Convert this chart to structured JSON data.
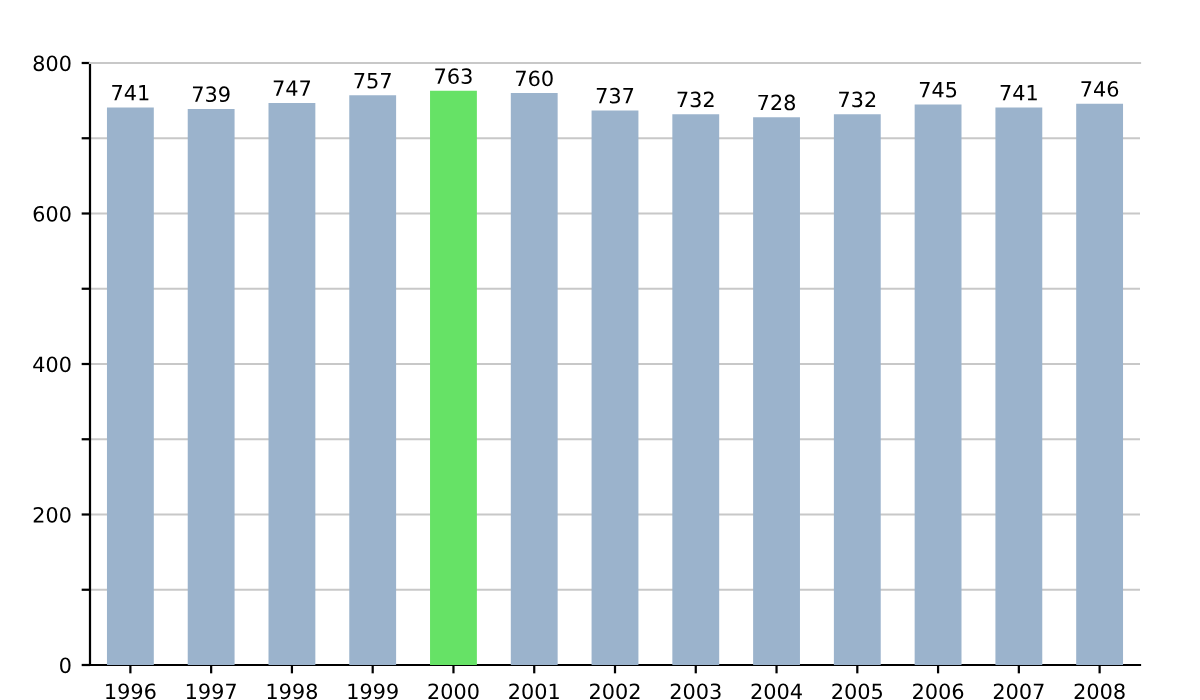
{
  "chart_data": {
    "type": "bar",
    "categories": [
      "1996",
      "1997",
      "1998",
      "1999",
      "2000",
      "2001",
      "2002",
      "2003",
      "2004",
      "2005",
      "2006",
      "2007",
      "2008"
    ],
    "values": [
      741,
      739,
      747,
      757,
      763,
      760,
      737,
      732,
      728,
      732,
      745,
      741,
      746
    ],
    "colors": [
      "#9bb3cc",
      "#9bb3cc",
      "#9bb3cc",
      "#9bb3cc",
      "#66e266",
      "#9bb3cc",
      "#9bb3cc",
      "#9bb3cc",
      "#9bb3cc",
      "#9bb3cc",
      "#9bb3cc",
      "#9bb3cc",
      "#9bb3cc"
    ],
    "ylim": [
      0,
      800
    ],
    "yticks": [
      0,
      {
        "value": 100,
        "label": null
      },
      200,
      {
        "value": 300,
        "label": null
      },
      400,
      {
        "value": 500,
        "label": null
      },
      600,
      {
        "value": 700,
        "label": null
      },
      800
    ],
    "grid": "y",
    "data_labels": true,
    "legend": false
  }
}
